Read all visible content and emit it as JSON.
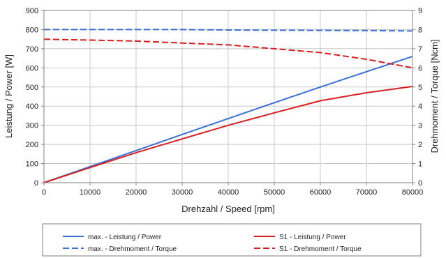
{
  "chart_data": {
    "type": "line",
    "title": "",
    "xlabel": "Drehzahl / Speed [rpm]",
    "ylabel_left": "Leistung / Power [W]",
    "ylabel_right": "Drehmoment / Torque [Ncm]",
    "xlim": [
      0,
      80000
    ],
    "ylim_left": [
      0,
      900
    ],
    "ylim_right": [
      0,
      9
    ],
    "x_ticks": [
      0,
      10000,
      20000,
      30000,
      40000,
      50000,
      60000,
      70000,
      80000
    ],
    "y_left_ticks": [
      0,
      100,
      200,
      300,
      400,
      500,
      600,
      700,
      800,
      900
    ],
    "y_right_ticks": [
      0,
      1,
      2,
      3,
      4,
      5,
      6,
      7,
      8,
      9
    ],
    "grid": true,
    "legend_position": "bottom",
    "series": [
      {
        "name": "max. - Leistung / Power",
        "axis": "left",
        "style": "solid",
        "color": "#3a6fd8",
        "x": [
          0,
          10000,
          20000,
          30000,
          40000,
          50000,
          60000,
          70000,
          80000
        ],
        "y": [
          0,
          84,
          168,
          252,
          335,
          418,
          500,
          580,
          660
        ]
      },
      {
        "name": "S1 - Leistung / Power",
        "axis": "left",
        "style": "solid",
        "color": "#d81e1e",
        "x": [
          0,
          10000,
          20000,
          30000,
          40000,
          50000,
          60000,
          70000,
          80000
        ],
        "y": [
          0,
          79,
          157,
          229,
          300,
          365,
          428,
          470,
          503
        ]
      },
      {
        "name": "max. - Drehmoment / Torque",
        "axis": "right",
        "style": "dashed",
        "color": "#3a6fd8",
        "x": [
          0,
          10000,
          20000,
          30000,
          40000,
          50000,
          60000,
          70000,
          80000
        ],
        "y": [
          8.0,
          8.0,
          8.0,
          8.0,
          7.98,
          7.97,
          7.96,
          7.95,
          7.93
        ]
      },
      {
        "name": "S1 - Drehmoment / Torque",
        "axis": "right",
        "style": "dashed",
        "color": "#d81e1e",
        "x": [
          0,
          10000,
          20000,
          30000,
          40000,
          50000,
          60000,
          70000,
          80000
        ],
        "y": [
          7.5,
          7.45,
          7.4,
          7.3,
          7.2,
          7.0,
          6.8,
          6.45,
          6.0
        ]
      }
    ]
  }
}
